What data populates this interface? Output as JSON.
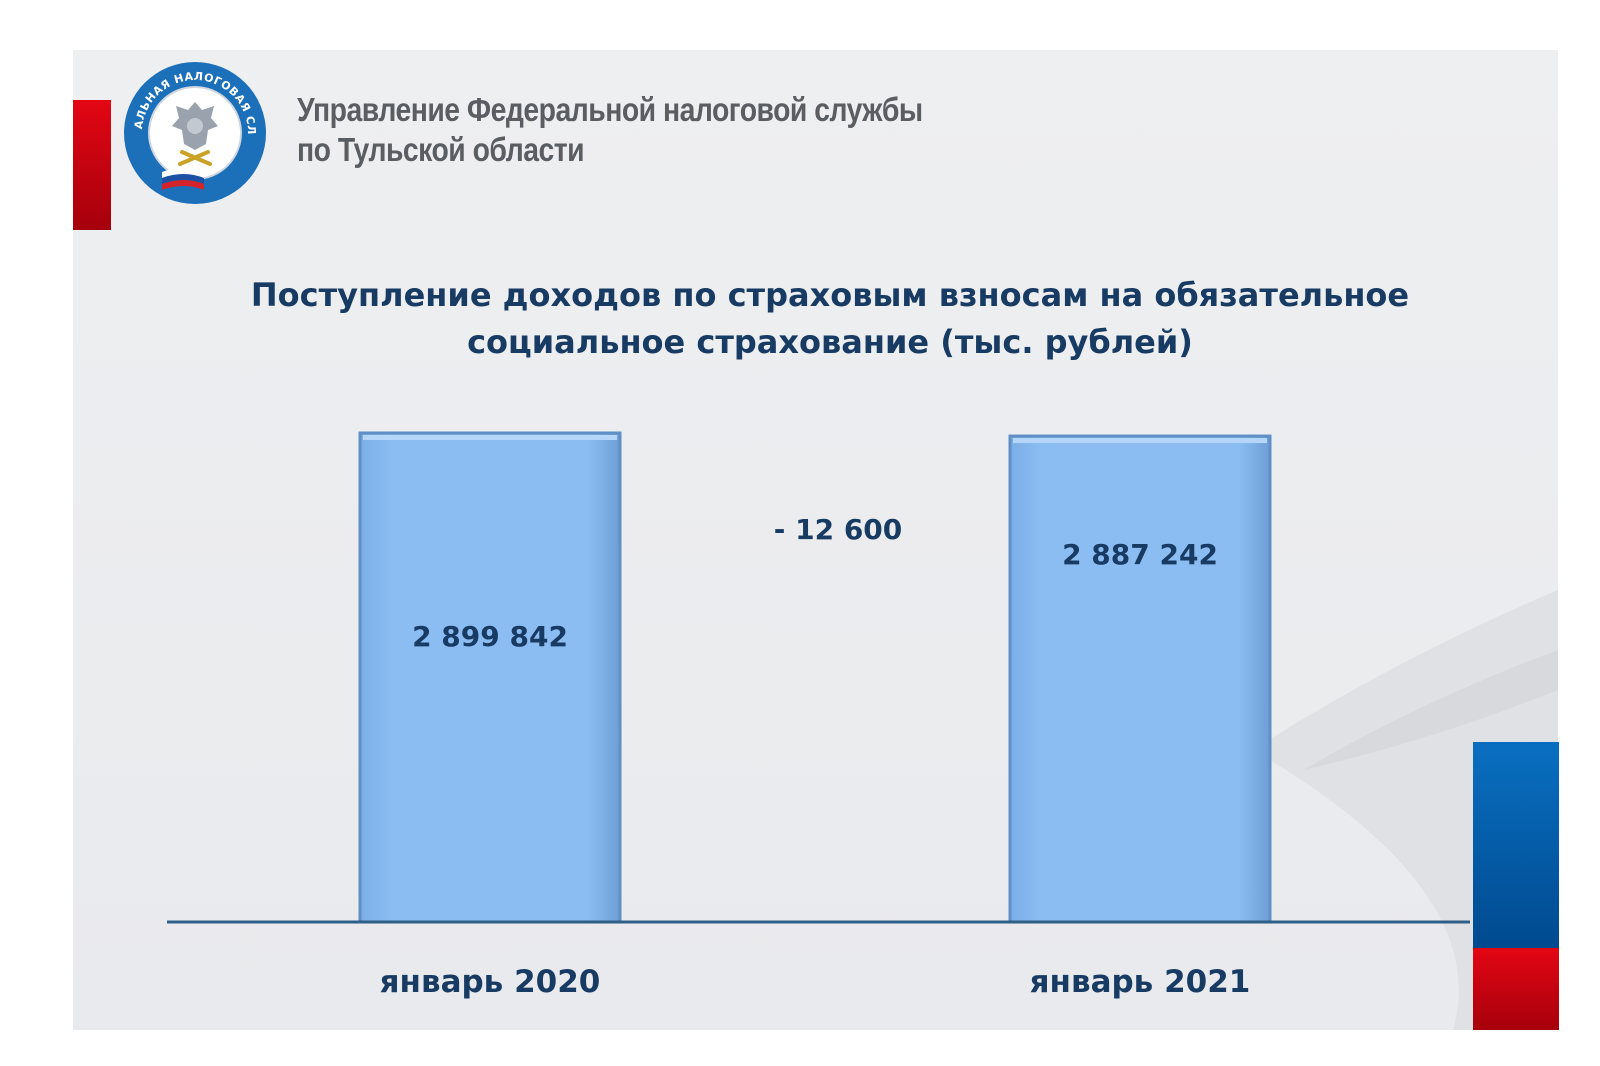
{
  "header": {
    "title_line1": "Управление Федеральной налоговой службы",
    "title_line2": "по Тульской области"
  },
  "logo": {
    "arc_text": "ФЕДЕРАЛЬНАЯ НАЛОГОВАЯ СЛУЖБА",
    "emblem": "double-headed-eagle-icon"
  },
  "colors": {
    "bar_fill": "#8bbdf2",
    "bar_edge": "#5f8fc5",
    "axis": "#2f5e86",
    "text_dark": "#183b63",
    "accent_red": "#e30613",
    "accent_blue": "#0a6fc1",
    "logo_blue": "#1c6fb9"
  },
  "chart_data": {
    "type": "bar",
    "title_line1": "Поступление доходов по страховым взносам на обязательное",
    "title_line2": "социальное страхование (тыс. рублей)",
    "categories": [
      "январь 2020",
      "январь 2021"
    ],
    "values": [
      2899842,
      2887242
    ],
    "data_labels": [
      "2 899 842",
      "2 887 242"
    ],
    "difference": -12600,
    "difference_label": "- 12 600",
    "grid": false,
    "legend": "none"
  }
}
